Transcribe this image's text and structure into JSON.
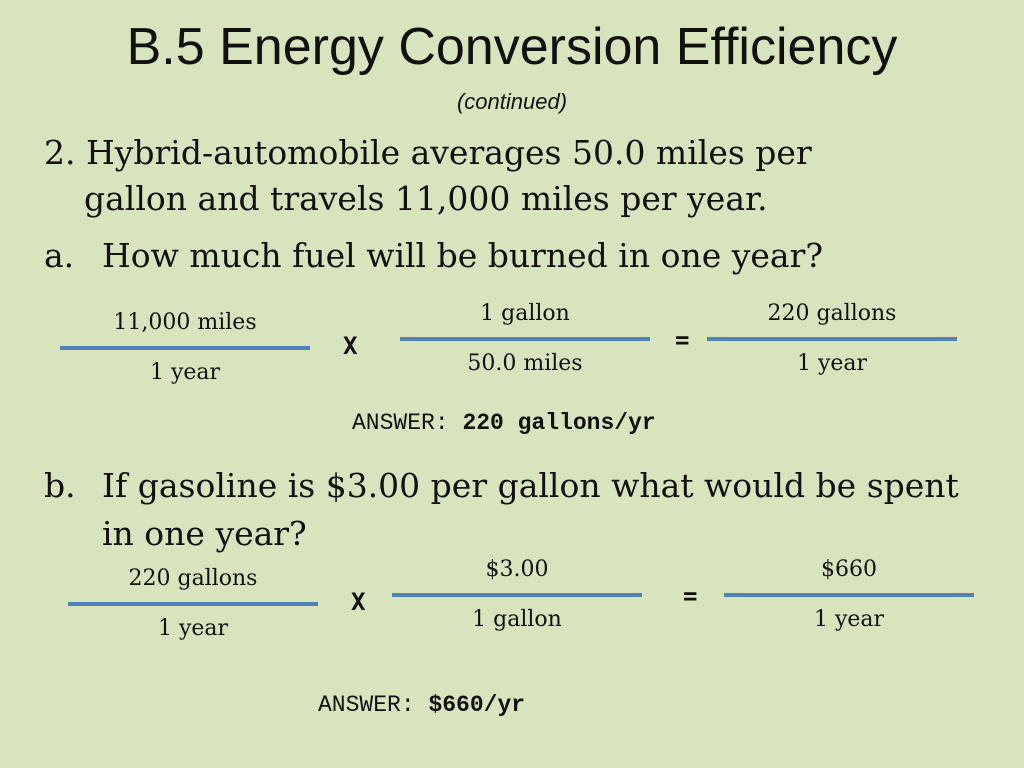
{
  "slide": {
    "title": "B.5 Energy Conversion Efficiency",
    "subtitle": "(continued)"
  },
  "question": {
    "line1": "2. Hybrid-automobile averages 50.0 miles per",
    "line2": "gallon and travels 11,000 miles per year."
  },
  "part_a": {
    "letter": "a.",
    "text": "How much fuel will be burned in one year?",
    "fractions": [
      {
        "num": "11,000 miles",
        "den": "1 year"
      },
      {
        "num": "1 gallon",
        "den": "50.0 miles"
      },
      {
        "num": "220 gallons",
        "den": "1 year"
      }
    ],
    "times": "X",
    "equals": "=",
    "answer_label": "ANSWER:",
    "answer_value": "220 gallons/yr"
  },
  "part_b": {
    "letter": "b.",
    "text": "If gasoline is $3.00 per gallon what would be spent in one year?",
    "fractions": [
      {
        "num": "220 gallons",
        "den": "1 year"
      },
      {
        "num": "$3.00",
        "den": "1 gallon"
      },
      {
        "num": "$660",
        "den": "1 year"
      }
    ],
    "times": "X",
    "equals": "=",
    "answer_label": "ANSWER:",
    "answer_value": "$660/yr"
  },
  "colors": {
    "background": "#d7e4bd",
    "fraction_bar": "#4f81bd"
  }
}
